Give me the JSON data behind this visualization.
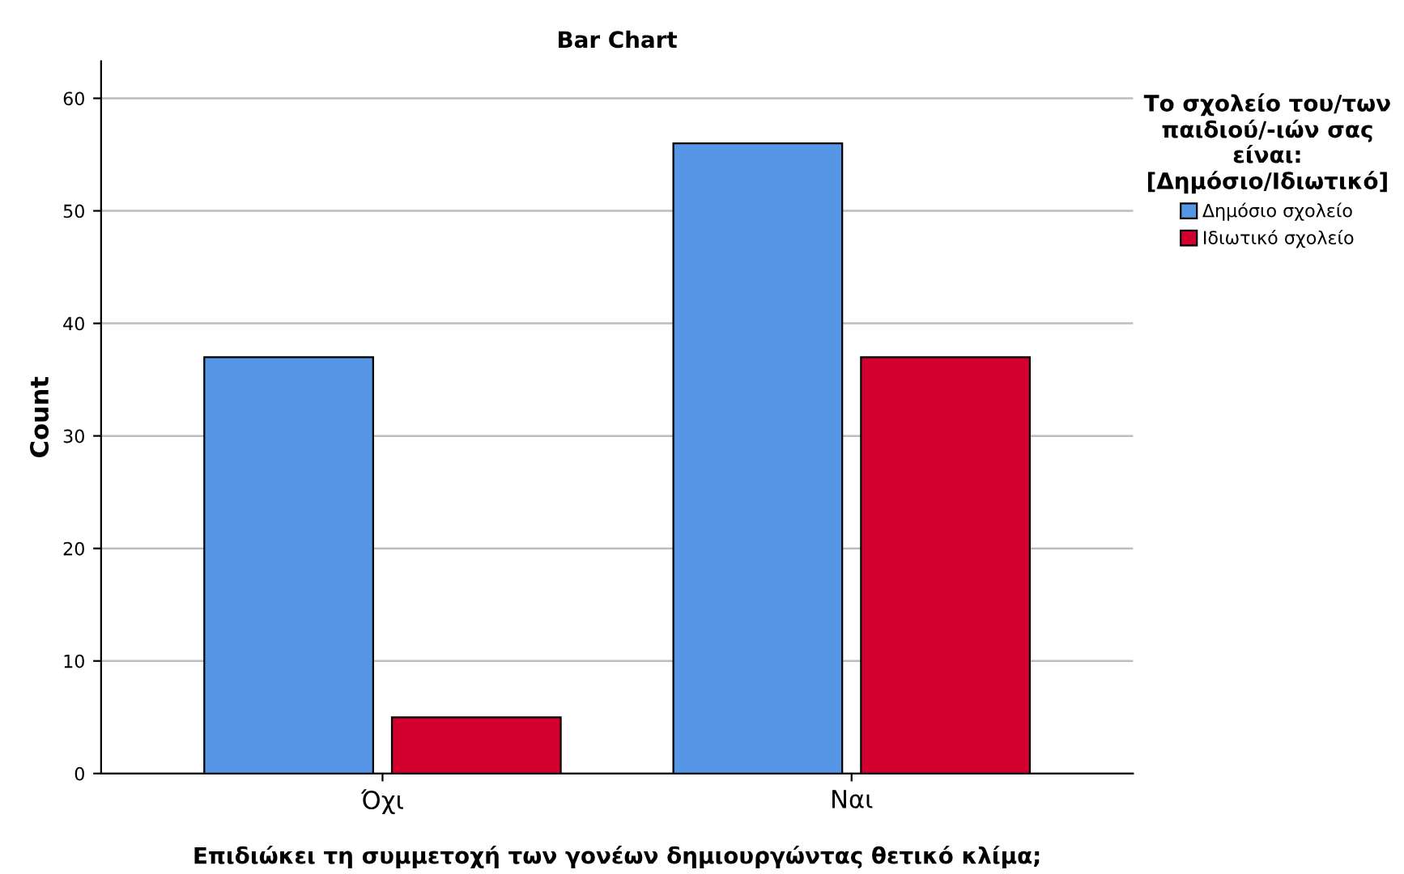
{
  "chart_data": {
    "type": "bar",
    "title": "Bar Chart",
    "xlabel": "Επιδιώκει τη συμμετοχή των γονέων δημιουργώντας θετικό κλίμα;",
    "ylabel": "Count",
    "legend_title": "Το σχολείο του/των\nπαιδιού/-ιών σας\nείναι:\n[Δημόσιο/Ιδιωτικό]",
    "categories": [
      "Όχι",
      "Ναι"
    ],
    "series": [
      {
        "name": "Δημόσιο σχολείο",
        "color": "#5596e6",
        "values": [
          37,
          56
        ]
      },
      {
        "name": "Ιδιωτικό σχολείο",
        "color": "#d2002f",
        "values": [
          5,
          37
        ]
      }
    ],
    "ylim": [
      0,
      63.3
    ],
    "yticks": [
      0,
      10,
      20,
      30,
      40,
      50,
      60
    ],
    "grid": "y",
    "legend": "top right"
  }
}
